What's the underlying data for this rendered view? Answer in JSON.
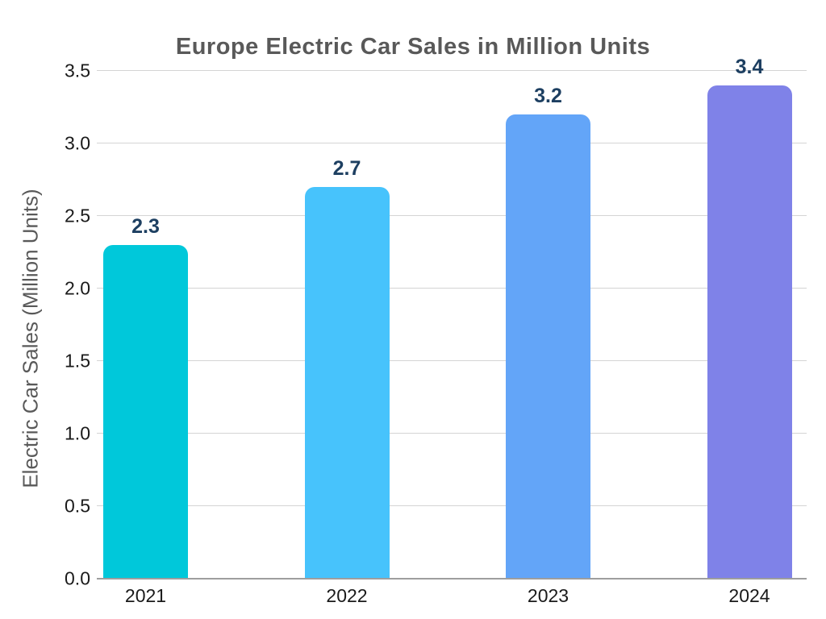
{
  "chart_data": {
    "type": "bar",
    "title": "Europe Electric Car Sales in Million Units",
    "ylabel": "Electric Car Sales (Million Units)",
    "xlabel": "",
    "categories": [
      "2021",
      "2022",
      "2023",
      "2024"
    ],
    "values": [
      2.3,
      2.7,
      3.2,
      3.4
    ],
    "value_labels": [
      "2.3",
      "2.7",
      "3.2",
      "3.4"
    ],
    "bar_colors": [
      "#00c8da",
      "#47c3fc",
      "#63a5f8",
      "#7f82e8"
    ],
    "ylim": [
      0,
      3.5
    ],
    "yticks": [
      0.0,
      0.5,
      1.0,
      1.5,
      2.0,
      2.5,
      3.0,
      3.5
    ],
    "ytick_labels": [
      "0.0",
      "0.5",
      "1.0",
      "1.5",
      "2.0",
      "2.5",
      "3.0",
      "3.5"
    ],
    "grid": "horizontal",
    "legend": "none",
    "colors": {
      "title_text": "#595959",
      "axis_label_text": "#595959",
      "tick_text": "#1a1a1a",
      "value_label_text": "#1d3f61",
      "gridline": "#d4d4d4",
      "axis_line": "#9e9e9e",
      "background": "#ffffff"
    }
  }
}
